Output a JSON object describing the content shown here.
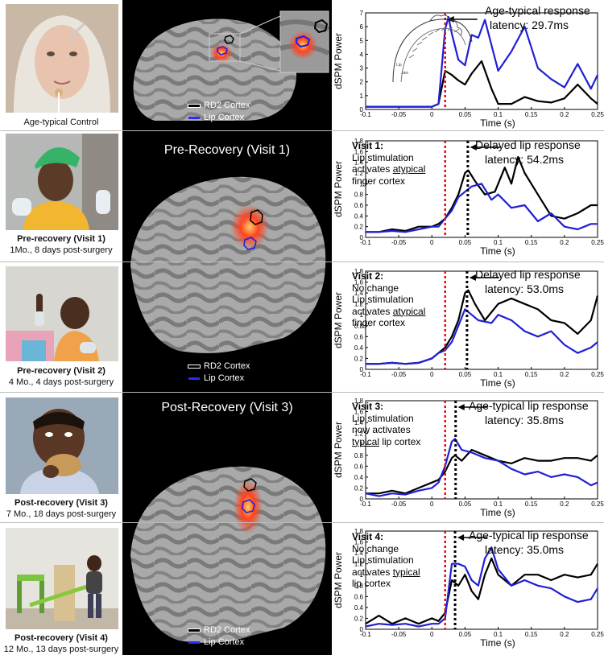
{
  "captions": {
    "control": "Age-typical Control",
    "v1_title": "Pre-recovery (Visit 1)",
    "v1_note": "1Mo., 8 days post-surgery",
    "v2_title": "Pre-recovery (Visit 2)",
    "v2_note": "4 Mo., 4 days post-surgery",
    "v3_title": "Post-recovery (Visit 3)",
    "v3_note": "7 Mo., 18 days post-surgery",
    "v4_title": "Post-recovery (Visit 4)",
    "v4_note": "12 Mo., 13 days post-surgery"
  },
  "brain": {
    "pre_title": "Pre-Recovery (Visit 1)",
    "post_title": "Post-Recovery (Visit 3)",
    "legend_rd2": "RD2 Cortex",
    "legend_lip": "Lip Cortex",
    "colors": {
      "rd2": "#000000",
      "lip": "#1f1fd6",
      "activation": "#ff4422"
    }
  },
  "annotations": {
    "control": {
      "head": "Age-typical response",
      "latency": "latency: 29.7ms"
    },
    "v1": {
      "head": "Delayed lip response",
      "latency": "latency: 54.2ms",
      "visit": "Visit 1",
      "l1": "Lip stimulation",
      "l2a": "activates ",
      "l2b": "atypical",
      "l3": "finger cortex"
    },
    "v2": {
      "head": "Delayed lip response",
      "latency": "latency: 53.0ms",
      "visit": "Visit 2",
      "l0": "No change",
      "l1": "Lip stimulation",
      "l2a": "activates ",
      "l2b": "atypical",
      "l3": "finger cortex"
    },
    "v3": {
      "head": "Age-typical lip response",
      "latency": "latency: 35.8ms",
      "visit": "Visit 3",
      "l1": "Lip stimulation",
      "l2": "now activates",
      "l3a": "typical",
      "l3b": " lip cortex"
    },
    "v4": {
      "head": "Age-typical lip response",
      "latency": "latency: 35.0ms",
      "visit": "Visit 4",
      "l0": "No change",
      "l1": "Lip stimulation",
      "l2a": "activates ",
      "l2b": "typical",
      "l3": "lip cortex"
    }
  },
  "chart_data": [
    {
      "type": "line",
      "panel": "control",
      "xlabel": "Time (s)",
      "ylabel": "dSPM Power",
      "xlim": [
        -0.1,
        0.25
      ],
      "ylim": [
        0,
        7
      ],
      "xticks": [
        "-0.1",
        "-0.05",
        "0",
        "0.05",
        "0.1",
        "0.15",
        "0.2",
        "0.25"
      ],
      "yticks": [
        "0",
        "1",
        "2",
        "3",
        "4",
        "5",
        "6",
        "7"
      ],
      "stim_x": 0.02,
      "peak_x": 0.0297,
      "series": [
        {
          "name": "RD2 Cortex",
          "color": "#000000",
          "x": [
            -0.1,
            -0.08,
            -0.06,
            -0.04,
            -0.02,
            0,
            0.01,
            0.02,
            0.03,
            0.04,
            0.05,
            0.06,
            0.075,
            0.09,
            0.1,
            0.12,
            0.14,
            0.16,
            0.18,
            0.2,
            0.22,
            0.24,
            0.25
          ],
          "y": [
            0.2,
            0.2,
            0.2,
            0.2,
            0.2,
            0.2,
            0.4,
            2.8,
            2.5,
            2.1,
            1.8,
            2.6,
            3.5,
            1.5,
            0.4,
            0.4,
            0.9,
            0.6,
            0.5,
            0.8,
            1.8,
            0.8,
            0.4
          ]
        },
        {
          "name": "Lip Cortex",
          "color": "#1f1fd6",
          "x": [
            -0.1,
            -0.08,
            -0.06,
            -0.04,
            -0.02,
            0,
            0.01,
            0.02,
            0.025,
            0.03,
            0.04,
            0.05,
            0.06,
            0.07,
            0.08,
            0.1,
            0.12,
            0.14,
            0.16,
            0.18,
            0.2,
            0.22,
            0.24,
            0.25
          ],
          "y": [
            0.2,
            0.2,
            0.2,
            0.2,
            0.2,
            0.2,
            0.4,
            5.8,
            6.7,
            5.5,
            3.6,
            3.2,
            5.4,
            5.2,
            6.5,
            2.8,
            4.2,
            6.0,
            3.0,
            2.2,
            1.6,
            3.3,
            1.5,
            2.5
          ]
        }
      ]
    },
    {
      "type": "line",
      "panel": "v1",
      "xlabel": "Time (s)",
      "ylabel": "dSPM Power",
      "xlim": [
        -0.1,
        0.25
      ],
      "ylim": [
        0,
        1.8
      ],
      "xticks": [
        "-0.1",
        "-0.05",
        "0",
        "0.05",
        "0.1",
        "0.15",
        "0.2",
        "0.25"
      ],
      "yticks": [
        "0",
        "0.2",
        "0.4",
        "0.6",
        "0.8",
        "1",
        "1.2",
        "1.4",
        "1.6",
        "1.8"
      ],
      "stim_x": 0.02,
      "peak_x": 0.0542,
      "series": [
        {
          "name": "RD2 Cortex",
          "color": "#000000",
          "x": [
            -0.1,
            -0.08,
            -0.06,
            -0.04,
            -0.02,
            0,
            0.01,
            0.02,
            0.03,
            0.04,
            0.05,
            0.055,
            0.065,
            0.08,
            0.095,
            0.11,
            0.12,
            0.13,
            0.14,
            0.16,
            0.18,
            0.2,
            0.22,
            0.24,
            0.25
          ],
          "y": [
            0.1,
            0.1,
            0.15,
            0.12,
            0.2,
            0.2,
            0.25,
            0.35,
            0.55,
            0.8,
            1.2,
            1.25,
            1.05,
            0.8,
            0.85,
            1.3,
            1.0,
            1.5,
            1.2,
            0.8,
            0.4,
            0.35,
            0.45,
            0.6,
            0.6
          ]
        },
        {
          "name": "Lip Cortex",
          "color": "#1f1fd6",
          "x": [
            -0.1,
            -0.08,
            -0.06,
            -0.04,
            -0.02,
            0,
            0.01,
            0.02,
            0.03,
            0.04,
            0.05,
            0.06,
            0.075,
            0.09,
            0.1,
            0.12,
            0.14,
            0.16,
            0.18,
            0.2,
            0.22,
            0.24,
            0.25
          ],
          "y": [
            0.1,
            0.1,
            0.12,
            0.1,
            0.15,
            0.2,
            0.2,
            0.35,
            0.5,
            0.75,
            0.85,
            0.95,
            1.0,
            0.7,
            0.8,
            0.55,
            0.6,
            0.3,
            0.45,
            0.2,
            0.15,
            0.25,
            0.25
          ]
        }
      ]
    },
    {
      "type": "line",
      "panel": "v2",
      "xlabel": "Time (s)",
      "ylabel": "dSPM Power",
      "xlim": [
        -0.1,
        0.25
      ],
      "ylim": [
        0,
        1.8
      ],
      "xticks": [
        "-0.1",
        "-0.05",
        "0",
        "0.05",
        "0.1",
        "0.15",
        "0.2",
        "0.25"
      ],
      "yticks": [
        "0",
        "0.2",
        "0.4",
        "0.6",
        "0.8",
        "1",
        "1.2",
        "1.4",
        "1.6",
        "1.8"
      ],
      "stim_x": 0.02,
      "peak_x": 0.053,
      "series": [
        {
          "name": "RD2 Cortex",
          "color": "#000000",
          "x": [
            -0.1,
            -0.08,
            -0.06,
            -0.04,
            -0.02,
            0,
            0.01,
            0.02,
            0.03,
            0.04,
            0.05,
            0.055,
            0.065,
            0.08,
            0.1,
            0.12,
            0.14,
            0.16,
            0.18,
            0.2,
            0.22,
            0.24,
            0.25
          ],
          "y": [
            0.1,
            0.1,
            0.12,
            0.1,
            0.12,
            0.2,
            0.3,
            0.4,
            0.6,
            0.9,
            1.4,
            1.45,
            1.2,
            0.9,
            1.2,
            1.3,
            1.2,
            1.1,
            0.9,
            0.85,
            0.65,
            0.9,
            1.35
          ]
        },
        {
          "name": "Lip Cortex",
          "color": "#1f1fd6",
          "x": [
            -0.1,
            -0.08,
            -0.06,
            -0.04,
            -0.02,
            0,
            0.01,
            0.02,
            0.03,
            0.04,
            0.05,
            0.06,
            0.07,
            0.09,
            0.1,
            0.12,
            0.14,
            0.16,
            0.18,
            0.2,
            0.22,
            0.24,
            0.25
          ],
          "y": [
            0.1,
            0.1,
            0.12,
            0.1,
            0.12,
            0.2,
            0.3,
            0.35,
            0.5,
            0.8,
            1.1,
            1.0,
            0.9,
            0.85,
            1.0,
            0.9,
            0.7,
            0.6,
            0.7,
            0.45,
            0.3,
            0.4,
            0.5
          ]
        }
      ]
    },
    {
      "type": "line",
      "panel": "v3",
      "xlabel": "Time (s)",
      "ylabel": "dSPM Power",
      "xlim": [
        -0.1,
        0.25
      ],
      "ylim": [
        0,
        1.8
      ],
      "xticks": [
        "-0.1",
        "-0.05",
        "0",
        "0.05",
        "0.1",
        "0.15",
        "0.2",
        "0.25"
      ],
      "yticks": [
        "0",
        "0.2",
        "0.4",
        "0.6",
        "0.8",
        "1",
        "1.2",
        "1.4",
        "1.6",
        "1.8"
      ],
      "stim_x": 0.02,
      "peak_x": 0.0358,
      "series": [
        {
          "name": "RD2 Cortex",
          "color": "#000000",
          "x": [
            -0.1,
            -0.08,
            -0.06,
            -0.04,
            -0.02,
            0,
            0.01,
            0.02,
            0.03,
            0.035,
            0.045,
            0.06,
            0.08,
            0.1,
            0.12,
            0.14,
            0.16,
            0.18,
            0.2,
            0.22,
            0.24,
            0.25
          ],
          "y": [
            0.1,
            0.1,
            0.15,
            0.1,
            0.2,
            0.3,
            0.35,
            0.5,
            0.75,
            0.8,
            0.7,
            0.9,
            0.8,
            0.7,
            0.65,
            0.75,
            0.7,
            0.7,
            0.75,
            0.75,
            0.7,
            0.8
          ]
        },
        {
          "name": "Lip Cortex",
          "color": "#1f1fd6",
          "x": [
            -0.1,
            -0.08,
            -0.06,
            -0.04,
            -0.02,
            0,
            0.01,
            0.02,
            0.03,
            0.035,
            0.045,
            0.06,
            0.08,
            0.1,
            0.12,
            0.14,
            0.16,
            0.18,
            0.2,
            0.22,
            0.24,
            0.25
          ],
          "y": [
            0.1,
            0.05,
            0.1,
            0.08,
            0.15,
            0.2,
            0.3,
            0.6,
            1.05,
            1.1,
            0.9,
            0.85,
            0.75,
            0.7,
            0.55,
            0.45,
            0.5,
            0.4,
            0.45,
            0.4,
            0.25,
            0.3
          ]
        }
      ]
    },
    {
      "type": "line",
      "panel": "v4",
      "xlabel": "Time (s)",
      "ylabel": "dSPM Power",
      "xlim": [
        -0.1,
        0.25
      ],
      "ylim": [
        0,
        1.8
      ],
      "xticks": [
        "-0.1",
        "-0.05",
        "0",
        "0.05",
        "0.1",
        "0.15",
        "0.2",
        "0.25"
      ],
      "yticks": [
        "0",
        "0.2",
        "0.4",
        "0.6",
        "0.8",
        "1",
        "1.2",
        "1.4",
        "1.6",
        "1.8"
      ],
      "stim_x": 0.02,
      "peak_x": 0.035,
      "series": [
        {
          "name": "RD2 Cortex",
          "color": "#000000",
          "x": [
            -0.1,
            -0.08,
            -0.06,
            -0.04,
            -0.02,
            0,
            0.01,
            0.02,
            0.03,
            0.04,
            0.05,
            0.06,
            0.07,
            0.08,
            0.09,
            0.1,
            0.12,
            0.14,
            0.16,
            0.18,
            0.2,
            0.22,
            0.24,
            0.25
          ],
          "y": [
            0.1,
            0.25,
            0.1,
            0.2,
            0.1,
            0.2,
            0.15,
            0.3,
            0.9,
            0.8,
            1.0,
            0.7,
            0.55,
            1.0,
            1.3,
            1.0,
            0.8,
            1.0,
            1.0,
            0.9,
            1.0,
            0.95,
            1.0,
            1.2
          ]
        },
        {
          "name": "Lip Cortex",
          "color": "#1f1fd6",
          "x": [
            -0.1,
            -0.08,
            -0.06,
            -0.04,
            -0.02,
            0,
            0.01,
            0.02,
            0.03,
            0.04,
            0.05,
            0.06,
            0.07,
            0.08,
            0.09,
            0.1,
            0.12,
            0.14,
            0.16,
            0.18,
            0.2,
            0.22,
            0.24,
            0.25
          ],
          "y": [
            0.05,
            0.1,
            0.08,
            0.1,
            0.05,
            0.1,
            0.1,
            0.2,
            1.2,
            1.2,
            1.15,
            0.9,
            0.8,
            1.3,
            1.5,
            1.1,
            0.8,
            0.9,
            0.8,
            0.75,
            0.6,
            0.5,
            0.55,
            0.75
          ]
        }
      ]
    }
  ]
}
